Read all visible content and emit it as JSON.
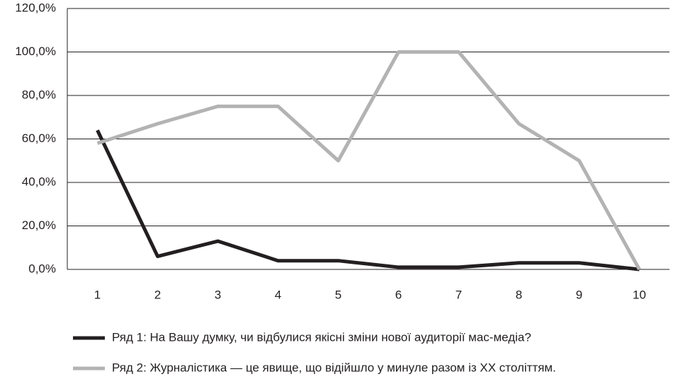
{
  "chart_data": {
    "type": "line",
    "categories": [
      "1",
      "2",
      "3",
      "4",
      "5",
      "6",
      "7",
      "8",
      "9",
      "10"
    ],
    "series": [
      {
        "name": "Ряд 1: На Вашу думку, чи відбулися якісні зміни нової аудиторії мас-медіа?",
        "color": "#231f20",
        "values": [
          64,
          6,
          13,
          4,
          4,
          1,
          1,
          3,
          3,
          0
        ]
      },
      {
        "name": "Ряд 2: Журналістика — це явище, що відійшло у минуле разом із XX століттям.",
        "color": "#b3b3b3",
        "values": [
          58,
          67,
          75,
          75,
          50,
          100,
          100,
          67,
          50,
          0
        ]
      }
    ],
    "ylim": [
      0,
      120
    ],
    "yticks": [
      {
        "value": 0,
        "label": "0,0%"
      },
      {
        "value": 20,
        "label": "20,0%"
      },
      {
        "value": 40,
        "label": "40,0%"
      },
      {
        "value": 60,
        "label": "60,0%"
      },
      {
        "value": 80,
        "label": "80,0%"
      },
      {
        "value": 100,
        "label": "100,0%"
      },
      {
        "value": 120,
        "label": "120,0%"
      }
    ],
    "grid": true,
    "legend": "bottom"
  }
}
